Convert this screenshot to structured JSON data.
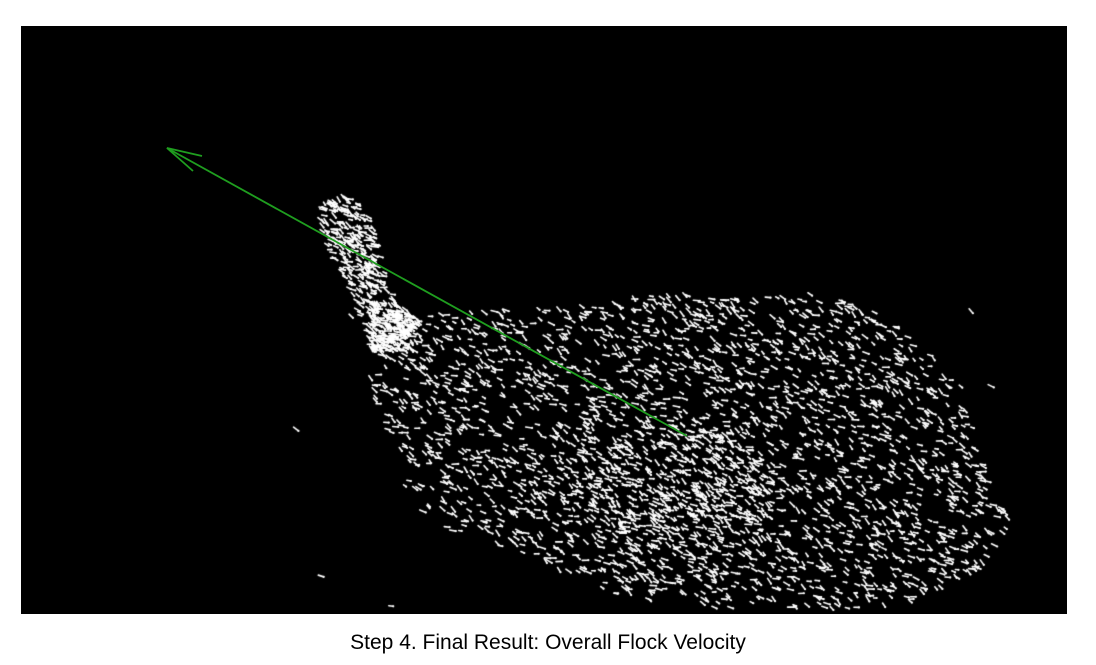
{
  "caption": "Step 4. Final Result: Overall Flock Velocity",
  "colors": {
    "background": "#000000",
    "boid": "#ffffff",
    "velocity_vector": "#1f9e1f"
  }
}
